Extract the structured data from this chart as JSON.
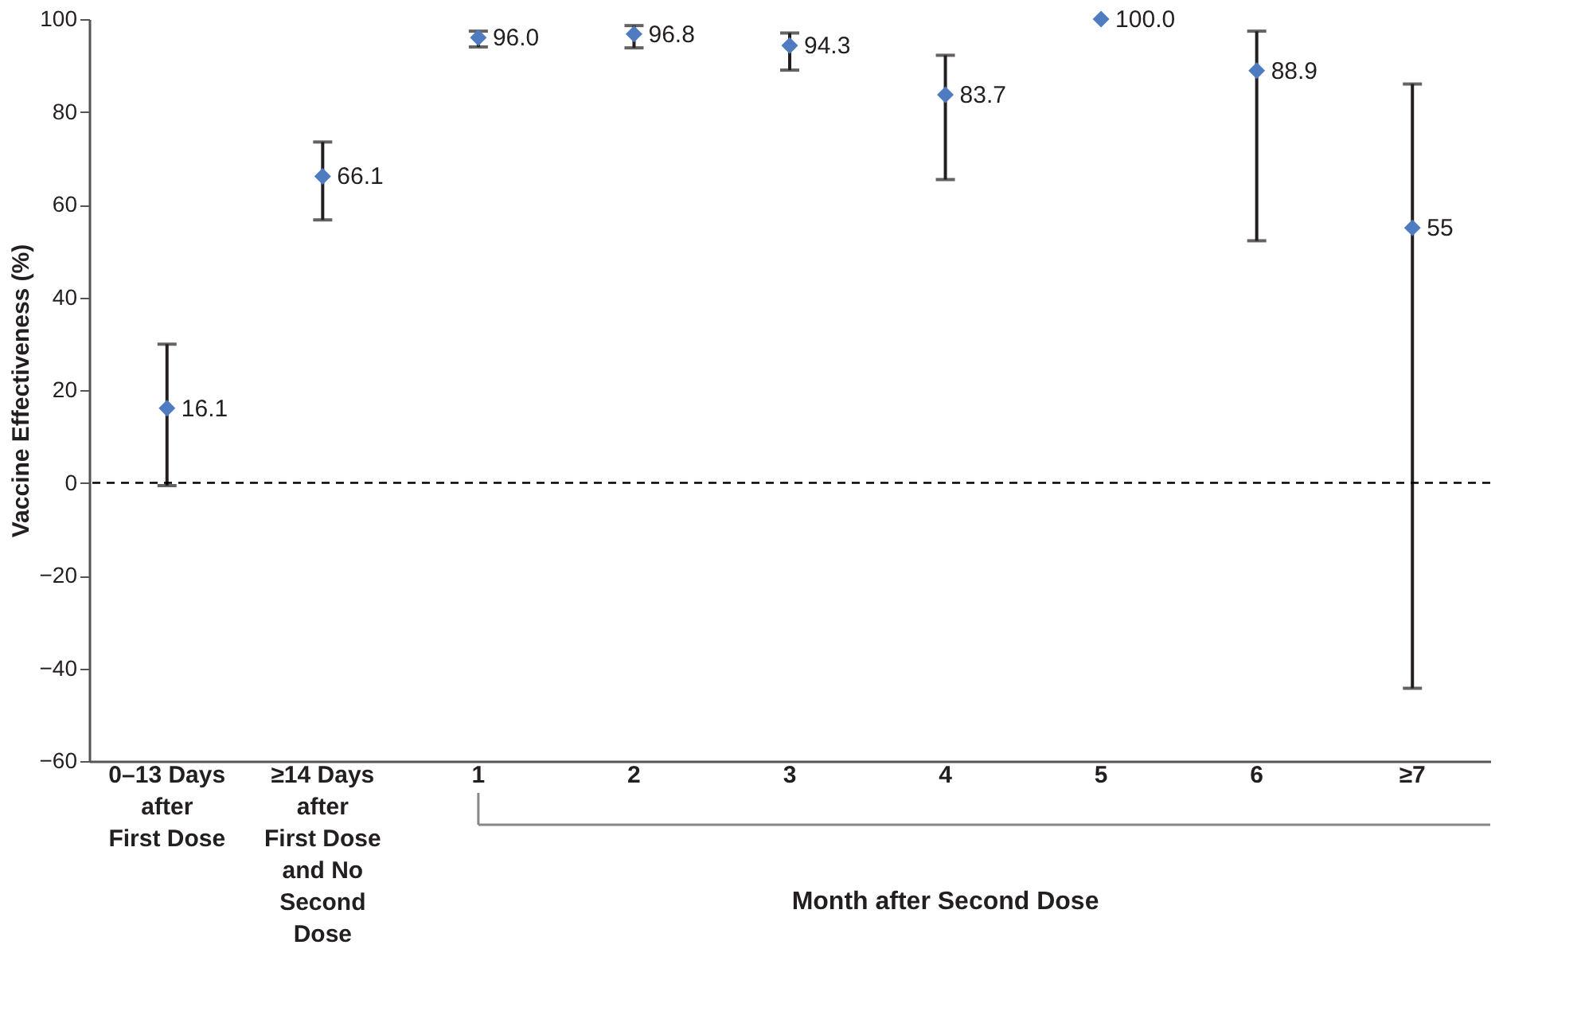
{
  "chart_data": {
    "type": "scatter",
    "ylabel": "Vaccine Effectiveness (%)",
    "categories": [
      "0–13 Days\nafter\nFirst Dose",
      "≥14 Days\nafter\nFirst Dose\nand No\nSecond\nDose",
      "1",
      "2",
      "3",
      "4",
      "5",
      "6",
      "≥7"
    ],
    "series": [
      {
        "color": "#4f7cc0",
        "values": [
          16.1,
          66.1,
          96.0,
          96.8,
          94.3,
          83.7,
          100.0,
          88.9,
          55
        ],
        "value_labels": [
          "16.1",
          "66.1",
          "96.0",
          "96.8",
          "94.3",
          "83.7",
          "100.0",
          "88.9",
          "55"
        ],
        "errors": [
          [
            -0.6,
            29.9
          ],
          [
            56.7,
            73.5
          ],
          [
            94.0,
            97.4
          ],
          [
            93.8,
            98.6
          ],
          [
            89.0,
            97.0
          ],
          [
            65.4,
            92.2
          ],
          null,
          [
            52.2,
            97.4
          ],
          [
            -44.3,
            86.0
          ]
        ]
      }
    ],
    "ylim": [
      -60,
      100
    ],
    "yticks": [
      {
        "value": -60,
        "label": "−60"
      },
      {
        "value": -40,
        "label": "−40"
      },
      {
        "value": -20,
        "label": "−20"
      },
      0,
      20,
      40,
      60,
      80,
      100
    ],
    "ref_lines": [
      {
        "axis": "y",
        "value": 0,
        "line_style": "dashed",
        "color": "#000000"
      }
    ],
    "annotations": [
      "Month after Second Dose"
    ],
    "marker": "diamond",
    "grid": false
  }
}
